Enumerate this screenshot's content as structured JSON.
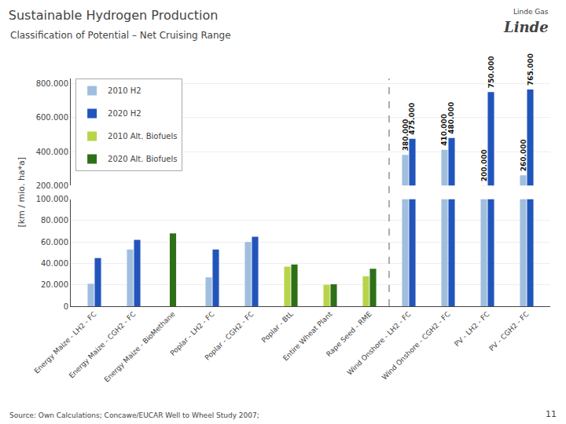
{
  "chart_data": {
    "type": "bar",
    "title": "Sustainable Hydrogen Production",
    "subtitle": "Classification of Potential – Net Cruising Range",
    "ylabel": "[km / mio. ha*a]",
    "annotations": [
      "Linde Gas",
      "Linde",
      "Source: Own Calculations; Concawe/EUCAR Well to Wheel Study 2007;",
      "11"
    ],
    "categories": [
      "Energy Maize - LH2 - FC",
      "Energy Maize - CGH2 - FC",
      "Energy Maize - BioMethane",
      "Poplar - LH2 - FC",
      "Poplar - CGH2 - FC",
      "Poplar - BtL",
      "Entire Wheat Plant",
      "Rape Seed - RME",
      "Wind Onshore - LH2 - FC",
      "Wind Onshore - CGH2 - FC",
      "PV - LH2 - FC",
      "PV - CGH2 - FC"
    ],
    "series": [
      {
        "name": "2010 H2",
        "color": "#a0bede",
        "values": [
          21000,
          53000,
          0,
          27000,
          60000,
          0,
          0,
          0,
          380000,
          410000,
          200000,
          260000
        ],
        "value_labels": [
          null,
          null,
          null,
          null,
          null,
          null,
          null,
          null,
          "380.000",
          "410.000",
          "200.000",
          "260.000"
        ]
      },
      {
        "name": "2020 H2",
        "color": "#2255bb",
        "values": [
          45000,
          62000,
          0,
          53000,
          65000,
          0,
          0,
          0,
          475000,
          480000,
          750000,
          765000
        ],
        "value_labels": [
          null,
          null,
          null,
          null,
          null,
          null,
          null,
          null,
          "475.000",
          "480.000",
          "750.000",
          "765.000"
        ]
      },
      {
        "name": "2010 Alt. Biofuels",
        "color": "#b8d44a",
        "values": [
          0,
          0,
          0,
          0,
          0,
          37000,
          20000,
          28000,
          0,
          0,
          0,
          0
        ]
      },
      {
        "name": "2020 Alt. Biofuels",
        "color": "#2e7018",
        "values": [
          0,
          0,
          68000,
          0,
          0,
          39000,
          20500,
          35000,
          0,
          0,
          0,
          0
        ]
      }
    ],
    "ylim": [
      [
        0,
        100000
      ],
      [
        200000,
        830000
      ]
    ],
    "yticks": [
      [
        0,
        {
          "value": 20000,
          "label": "20.000"
        },
        {
          "value": 40000,
          "label": "40.000"
        },
        {
          "value": 60000,
          "label": "60.000"
        },
        {
          "value": 80000,
          "label": "80.000"
        },
        {
          "value": 100000,
          "label": "100.000"
        }
      ],
      [
        {
          "value": 200000,
          "label": "200.000"
        },
        {
          "value": 400000,
          "label": "400.000"
        },
        {
          "value": 600000,
          "label": "600.000"
        },
        {
          "value": 800000,
          "label": "800.000"
        }
      ]
    ],
    "grid": true,
    "legend": "upper left",
    "data_labels": true
  }
}
